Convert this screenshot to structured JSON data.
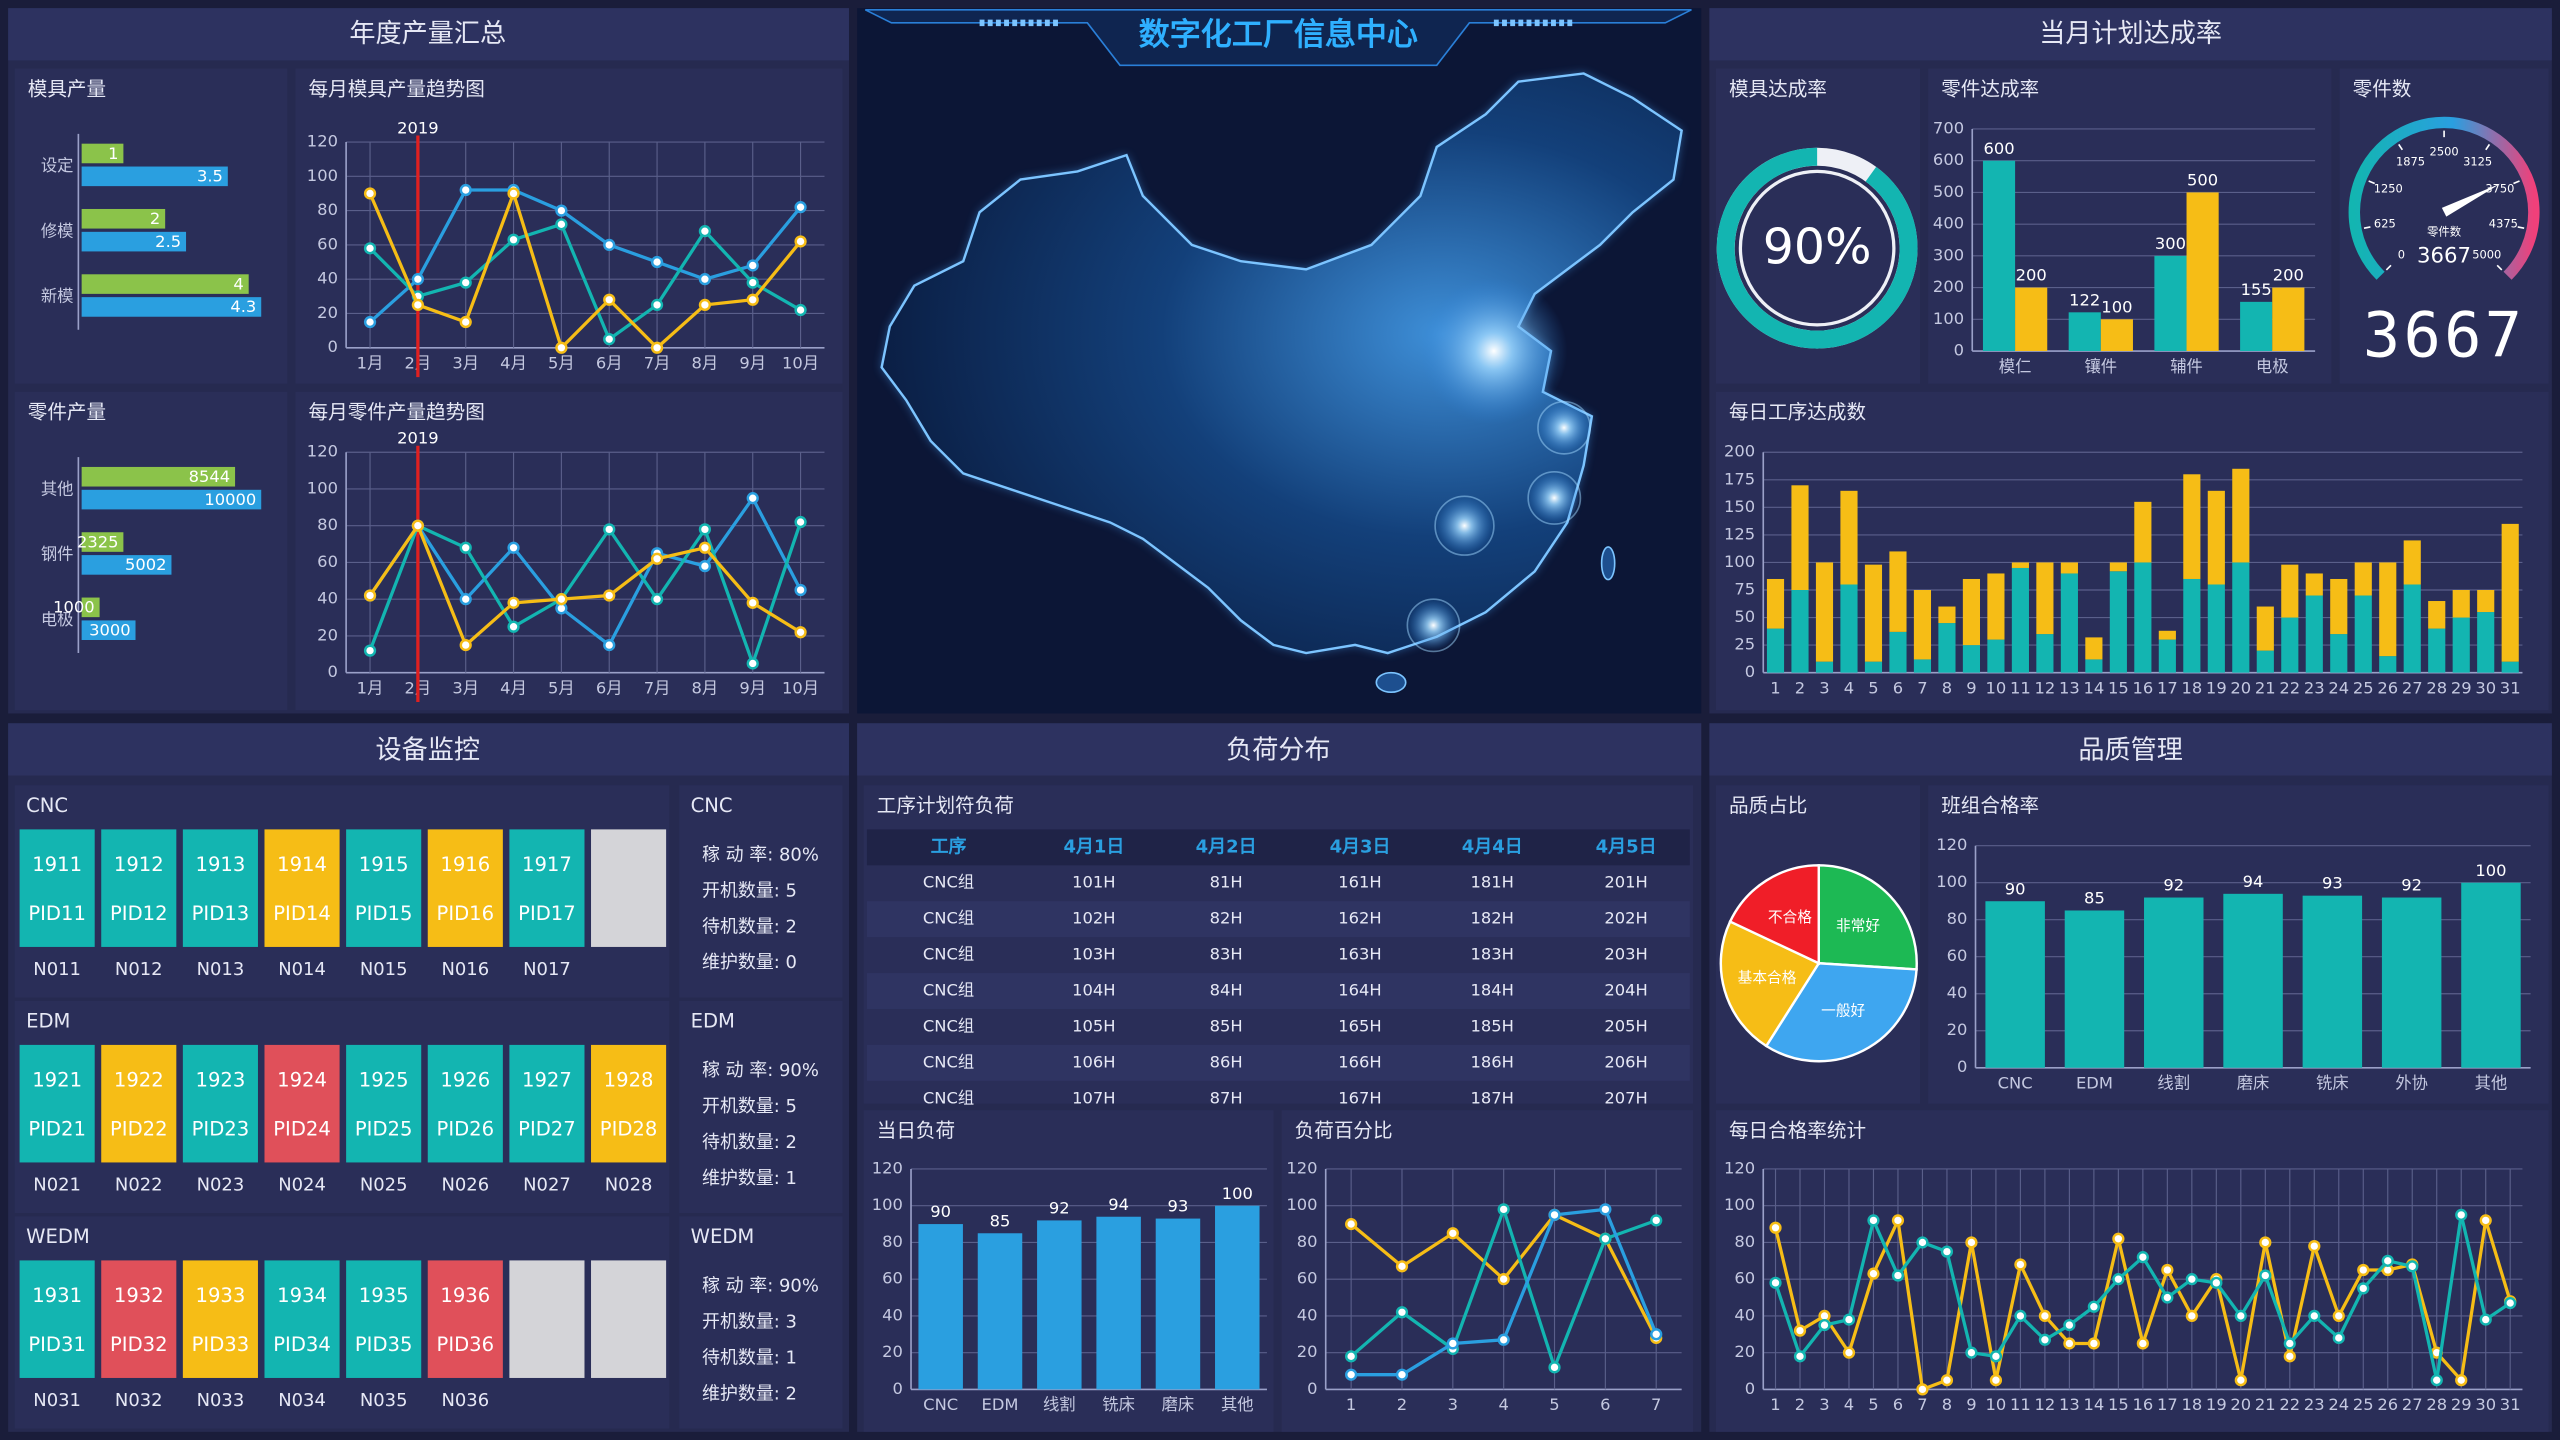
{
  "header": {
    "title": "数字化工厂信息中心"
  },
  "panels": {
    "production": "年度产量汇总",
    "plan": "当月计划达成率",
    "equipment": "设备监控",
    "load": "负荷分布",
    "quality": "品质管理"
  },
  "chart_data": [
    {
      "type": "hbar",
      "title": "模具产量",
      "categories": [
        "设定",
        "修模",
        "新模"
      ],
      "series": [
        {
          "color": "#8bc34a",
          "values": [
            1,
            2,
            4
          ]
        },
        {
          "color": "#2a9fe0",
          "values": [
            3.5,
            2.5,
            4.3
          ]
        }
      ]
    },
    {
      "type": "line",
      "title": "每月模具产量趋势图",
      "categories": [
        "1月",
        "2月",
        "3月",
        "4月",
        "5月",
        "6月",
        "7月",
        "8月",
        "9月",
        "10月"
      ],
      "ylim": [
        0,
        120
      ],
      "yticks": [
        0,
        20,
        40,
        60,
        80,
        100,
        120
      ],
      "grid": true,
      "annotation": {
        "text": "2019",
        "index": 1,
        "color": "#e02020"
      },
      "series": [
        {
          "color": "#2a9fe0",
          "values": [
            15,
            40,
            92,
            92,
            80,
            60,
            50,
            40,
            48,
            82
          ]
        },
        {
          "color": "#13b5b1",
          "values": [
            58,
            30,
            38,
            63,
            72,
            5,
            25,
            68,
            38,
            22
          ]
        },
        {
          "color": "#f6bd16",
          "values": [
            90,
            25,
            15,
            90,
            0,
            28,
            0,
            25,
            28,
            62
          ]
        }
      ]
    },
    {
      "type": "hbar",
      "title": "零件产量",
      "categories": [
        "其他",
        "钢件",
        "电极"
      ],
      "series": [
        {
          "color": "#8bc34a",
          "values": [
            8544,
            2325,
            1000
          ]
        },
        {
          "color": "#2a9fe0",
          "values": [
            10000,
            5002,
            3000
          ]
        }
      ]
    },
    {
      "type": "line",
      "title": "每月零件产量趋势图",
      "categories": [
        "1月",
        "2月",
        "3月",
        "4月",
        "5月",
        "6月",
        "7月",
        "8月",
        "9月",
        "10月"
      ],
      "ylim": [
        0,
        120
      ],
      "yticks": [
        0,
        20,
        40,
        60,
        80,
        100,
        120
      ],
      "grid": true,
      "annotation": {
        "text": "2019",
        "index": 1,
        "color": "#e02020"
      },
      "series": [
        {
          "color": "#2a9fe0",
          "values": [
            42,
            80,
            40,
            68,
            35,
            15,
            65,
            58,
            95,
            45
          ]
        },
        {
          "color": "#13b5b1",
          "values": [
            12,
            80,
            68,
            25,
            40,
            78,
            40,
            78,
            5,
            82
          ]
        },
        {
          "color": "#f6bd16",
          "values": [
            42,
            80,
            15,
            38,
            40,
            42,
            62,
            68,
            38,
            22
          ]
        }
      ]
    },
    {
      "type": "donut",
      "title": "模具达成率",
      "value": 90,
      "value_label": "90%",
      "color": "#13b5b1"
    },
    {
      "type": "bar",
      "title": "零件达成率",
      "categories": [
        "模仁",
        "镶件",
        "辅件",
        "电极"
      ],
      "ylim": [
        0,
        700
      ],
      "yticks": [
        0,
        100,
        200,
        300,
        400,
        500,
        600,
        700
      ],
      "grid": true,
      "show_values": true,
      "series": [
        {
          "color": "#13b5b1",
          "values": [
            600,
            122,
            300,
            155
          ]
        },
        {
          "color": "#f6bd16",
          "values": [
            200,
            100,
            500,
            200
          ]
        }
      ]
    },
    {
      "type": "gauge",
      "title": "零件数",
      "label": "零件数",
      "value": 3667,
      "ylim": [
        0,
        5000
      ],
      "yticks": [
        0,
        625,
        1250,
        1875,
        2500,
        3125,
        3750,
        4375,
        5000
      ]
    },
    {
      "type": "bar",
      "title": "每日工序达成数",
      "stacked": true,
      "categories": [
        "1",
        "2",
        "3",
        "4",
        "5",
        "6",
        "7",
        "8",
        "9",
        "10",
        "11",
        "12",
        "13",
        "14",
        "15",
        "16",
        "17",
        "18",
        "19",
        "20",
        "21",
        "22",
        "23",
        "24",
        "25",
        "26",
        "27",
        "28",
        "29",
        "30",
        "31"
      ],
      "ylim": [
        0,
        200
      ],
      "yticks": [
        0,
        25,
        50,
        75,
        100,
        125,
        150,
        175,
        200
      ],
      "grid": true,
      "series": [
        {
          "color": "#13b5b1",
          "values": [
            40,
            75,
            10,
            80,
            10,
            37,
            12,
            45,
            25,
            30,
            95,
            35,
            90,
            12,
            92,
            100,
            30,
            85,
            80,
            100,
            20,
            50,
            70,
            35,
            70,
            15,
            80,
            40,
            50,
            55,
            10
          ]
        },
        {
          "color": "#f6bd16",
          "values": [
            45,
            95,
            90,
            85,
            88,
            73,
            63,
            15,
            60,
            60,
            5,
            65,
            10,
            20,
            8,
            55,
            8,
            95,
            85,
            85,
            40,
            48,
            20,
            50,
            30,
            85,
            40,
            25,
            25,
            20,
            125
          ]
        }
      ]
    },
    {
      "type": "bar",
      "title": "当日负荷",
      "categories": [
        "CNC",
        "EDM",
        "线割",
        "铣床",
        "磨床",
        "其他"
      ],
      "ylim": [
        0,
        120
      ],
      "yticks": [
        0,
        20,
        40,
        60,
        80,
        100,
        120
      ],
      "grid": true,
      "show_values": true,
      "series": [
        {
          "color": "#2a9fe0",
          "values": [
            90,
            85,
            92,
            94,
            93,
            100
          ]
        }
      ]
    },
    {
      "type": "line",
      "title": "负荷百分比",
      "categories": [
        "1",
        "2",
        "3",
        "4",
        "5",
        "6",
        "7"
      ],
      "ylim": [
        0,
        120
      ],
      "yticks": [
        0,
        20,
        40,
        60,
        80,
        100,
        120
      ],
      "grid": true,
      "series": [
        {
          "color": "#f6bd16",
          "values": [
            90,
            67,
            85,
            60,
            95,
            82,
            28
          ]
        },
        {
          "color": "#13b5b1",
          "values": [
            18,
            42,
            22,
            98,
            12,
            82,
            92
          ]
        },
        {
          "color": "#2a9fe0",
          "values": [
            8,
            8,
            25,
            27,
            95,
            98,
            30
          ]
        }
      ]
    },
    {
      "type": "pie",
      "title": "品质占比",
      "categories": [
        "非常好",
        "一般好",
        "基本合格",
        "不合格"
      ],
      "values": [
        26,
        33,
        23,
        18
      ],
      "colors": [
        "#1db954",
        "#3ea6f0",
        "#f6bd16",
        "#f01e28"
      ]
    },
    {
      "type": "bar",
      "title": "班组合格率",
      "categories": [
        "CNC",
        "EDM",
        "线割",
        "磨床",
        "铣床",
        "外协",
        "其他"
      ],
      "ylim": [
        0,
        120
      ],
      "yticks": [
        0,
        20,
        40,
        60,
        80,
        100,
        120
      ],
      "grid": true,
      "show_values": true,
      "series": [
        {
          "color": "#13b5b1",
          "values": [
            90,
            85,
            92,
            94,
            93,
            92,
            100
          ]
        }
      ]
    },
    {
      "type": "line",
      "title": "每日合格率统计",
      "categories": [
        "1",
        "2",
        "3",
        "4",
        "5",
        "6",
        "7",
        "8",
        "9",
        "10",
        "11",
        "12",
        "13",
        "14",
        "15",
        "16",
        "17",
        "18",
        "19",
        "20",
        "21",
        "22",
        "23",
        "24",
        "25",
        "26",
        "27",
        "28",
        "29",
        "30",
        "31"
      ],
      "ylim": [
        0,
        120
      ],
      "yticks": [
        0,
        20,
        40,
        60,
        80,
        100,
        120
      ],
      "grid": true,
      "series": [
        {
          "color": "#f6bd16",
          "values": [
            88,
            32,
            40,
            20,
            63,
            92,
            0,
            5,
            80,
            5,
            68,
            40,
            25,
            25,
            82,
            25,
            65,
            40,
            60,
            5,
            80,
            18,
            78,
            40,
            65,
            65,
            68,
            20,
            5,
            92,
            48
          ]
        },
        {
          "color": "#13b5b1",
          "values": [
            58,
            18,
            35,
            38,
            92,
            62,
            80,
            75,
            20,
            18,
            40,
            27,
            35,
            45,
            60,
            72,
            50,
            60,
            58,
            40,
            62,
            25,
            40,
            28,
            55,
            70,
            67,
            5,
            95,
            38,
            47
          ]
        }
      ]
    }
  ],
  "equipment": {
    "groups": [
      {
        "name": "CNC",
        "stats_title": "CNC",
        "stats": [
          "稼 动 率: 80%",
          "开机数量: 5",
          "待机数量: 2",
          "维护数量: 0"
        ],
        "tiles": [
          {
            "code": "1911",
            "pid": "PID11",
            "label": "N011",
            "color": "#13b5b1"
          },
          {
            "code": "1912",
            "pid": "PID12",
            "label": "N012",
            "color": "#13b5b1"
          },
          {
            "code": "1913",
            "pid": "PID13",
            "label": "N013",
            "color": "#13b5b1"
          },
          {
            "code": "1914",
            "pid": "PID14",
            "label": "N014",
            "color": "#f6bd16"
          },
          {
            "code": "1915",
            "pid": "PID15",
            "label": "N015",
            "color": "#13b5b1"
          },
          {
            "code": "1916",
            "pid": "PID16",
            "label": "N016",
            "color": "#f6bd16"
          },
          {
            "code": "1917",
            "pid": "PID17",
            "label": "N017",
            "color": "#13b5b1"
          },
          {
            "color": "#d4d4d8"
          }
        ]
      },
      {
        "name": "EDM",
        "stats_title": "EDM",
        "stats": [
          "稼 动 率: 90%",
          "开机数量: 5",
          "待机数量: 2",
          "维护数量: 1"
        ],
        "tiles": [
          {
            "code": "1921",
            "pid": "PID21",
            "label": "N021",
            "color": "#13b5b1"
          },
          {
            "code": "1922",
            "pid": "PID22",
            "label": "N022",
            "color": "#f6bd16"
          },
          {
            "code": "1923",
            "pid": "PID23",
            "label": "N023",
            "color": "#13b5b1"
          },
          {
            "code": "1924",
            "pid": "PID24",
            "label": "N024",
            "color": "#e0505a"
          },
          {
            "code": "1925",
            "pid": "PID25",
            "label": "N025",
            "color": "#13b5b1"
          },
          {
            "code": "1926",
            "pid": "PID26",
            "label": "N026",
            "color": "#13b5b1"
          },
          {
            "code": "1927",
            "pid": "PID27",
            "label": "N027",
            "color": "#13b5b1"
          },
          {
            "code": "1928",
            "pid": "PID28",
            "label": "N028",
            "color": "#f6bd16"
          }
        ]
      },
      {
        "name": "WEDM",
        "stats_title": "WEDM",
        "stats": [
          "稼 动 率: 90%",
          "开机数量: 3",
          "待机数量: 1",
          "维护数量: 2"
        ],
        "tiles": [
          {
            "code": "1931",
            "pid": "PID31",
            "label": "N031",
            "color": "#13b5b1"
          },
          {
            "code": "1932",
            "pid": "PID32",
            "label": "N032",
            "color": "#e0505a"
          },
          {
            "code": "1933",
            "pid": "PID33",
            "label": "N033",
            "color": "#f6bd16"
          },
          {
            "code": "1934",
            "pid": "PID34",
            "label": "N034",
            "color": "#13b5b1"
          },
          {
            "code": "1935",
            "pid": "PID35",
            "label": "N035",
            "color": "#13b5b1"
          },
          {
            "code": "1936",
            "pid": "PID36",
            "label": "N036",
            "color": "#e0505a"
          },
          {
            "color": "#d4d4d8"
          },
          {
            "color": "#d4d4d8"
          }
        ]
      }
    ]
  },
  "load_table": {
    "title": "工序计划符负荷",
    "header": [
      "工序",
      "4月1日",
      "4月2日",
      "4月3日",
      "4月4日",
      "4月5日"
    ],
    "rows": [
      [
        "CNC组",
        "101H",
        "81H",
        "161H",
        "181H",
        "201H"
      ],
      [
        "CNC组",
        "102H",
        "82H",
        "162H",
        "182H",
        "202H"
      ],
      [
        "CNC组",
        "103H",
        "83H",
        "163H",
        "183H",
        "203H"
      ],
      [
        "CNC组",
        "104H",
        "84H",
        "164H",
        "184H",
        "204H"
      ],
      [
        "CNC组",
        "105H",
        "85H",
        "165H",
        "185H",
        "205H"
      ],
      [
        "CNC组",
        "106H",
        "86H",
        "166H",
        "186H",
        "206H"
      ],
      [
        "CNC组",
        "107H",
        "87H",
        "167H",
        "187H",
        "207H"
      ]
    ]
  }
}
